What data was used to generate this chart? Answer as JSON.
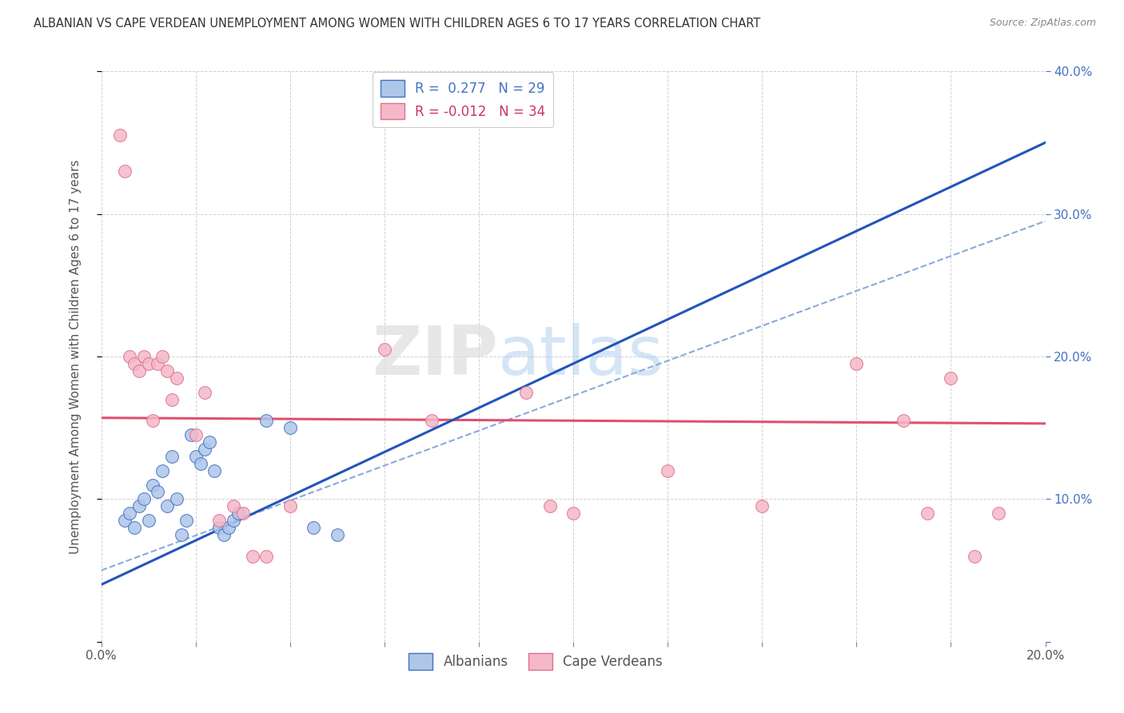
{
  "title": "ALBANIAN VS CAPE VERDEAN UNEMPLOYMENT AMONG WOMEN WITH CHILDREN AGES 6 TO 17 YEARS CORRELATION CHART",
  "source": "Source: ZipAtlas.com",
  "ylabel": "Unemployment Among Women with Children Ages 6 to 17 years",
  "xlim": [
    0.0,
    0.2
  ],
  "ylim": [
    0.0,
    0.4
  ],
  "xticks": [
    0.0,
    0.02,
    0.04,
    0.06,
    0.08,
    0.1,
    0.12,
    0.14,
    0.16,
    0.18,
    0.2
  ],
  "yticks": [
    0.0,
    0.1,
    0.2,
    0.3,
    0.4
  ],
  "background_color": "#ffffff",
  "albanian_color": "#aec6e8",
  "albanian_edge": "#4472c4",
  "capeverdean_color": "#f4b8c8",
  "capeverdean_edge": "#e07090",
  "albanian_trend_color": "#2255bb",
  "capeverdean_trend_color": "#e05070",
  "dashed_color": "#88aadd",
  "marker_size": 130,
  "albanian_x": [
    0.005,
    0.006,
    0.007,
    0.008,
    0.009,
    0.01,
    0.011,
    0.012,
    0.013,
    0.014,
    0.015,
    0.016,
    0.017,
    0.018,
    0.019,
    0.02,
    0.021,
    0.022,
    0.023,
    0.024,
    0.025,
    0.026,
    0.027,
    0.028,
    0.029,
    0.035,
    0.04,
    0.045,
    0.05
  ],
  "albanian_y": [
    0.085,
    0.09,
    0.08,
    0.095,
    0.1,
    0.085,
    0.11,
    0.105,
    0.12,
    0.095,
    0.13,
    0.1,
    0.075,
    0.085,
    0.145,
    0.13,
    0.125,
    0.135,
    0.14,
    0.12,
    0.08,
    0.075,
    0.08,
    0.085,
    0.09,
    0.155,
    0.15,
    0.08,
    0.075
  ],
  "capeverdean_x": [
    0.004,
    0.005,
    0.006,
    0.007,
    0.008,
    0.009,
    0.01,
    0.011,
    0.012,
    0.013,
    0.014,
    0.015,
    0.016,
    0.02,
    0.022,
    0.025,
    0.028,
    0.03,
    0.032,
    0.035,
    0.04,
    0.06,
    0.07,
    0.09,
    0.095,
    0.1,
    0.12,
    0.14,
    0.16,
    0.17,
    0.175,
    0.18,
    0.185,
    0.19
  ],
  "capeverdean_y": [
    0.355,
    0.33,
    0.2,
    0.195,
    0.19,
    0.2,
    0.195,
    0.155,
    0.195,
    0.2,
    0.19,
    0.17,
    0.185,
    0.145,
    0.175,
    0.085,
    0.095,
    0.09,
    0.06,
    0.06,
    0.095,
    0.205,
    0.155,
    0.175,
    0.095,
    0.09,
    0.12,
    0.095,
    0.195,
    0.155,
    0.09,
    0.185,
    0.06,
    0.09
  ],
  "watermark_zip": "ZIP",
  "watermark_atlas": "atlas",
  "albanian_R": 0.277,
  "albanian_N": 29,
  "capeverdean_R": -0.012,
  "capeverdean_N": 34
}
